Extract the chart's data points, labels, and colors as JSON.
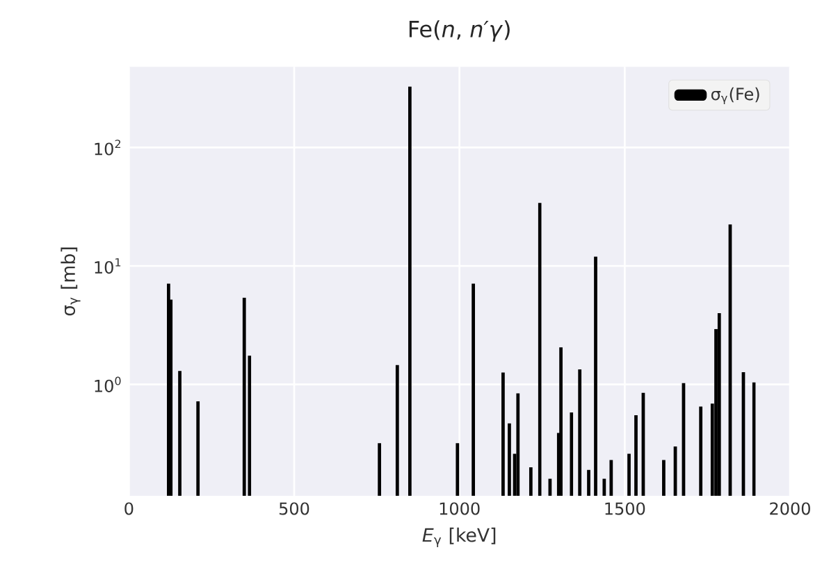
{
  "chart_data": {
    "type": "bar",
    "title": "Fe(*n*, *n′γ*)",
    "xlabel": "*E*$_{γ}$ [keV]",
    "ylabel": "σ$_{γ}$ [mb]",
    "series": [
      {
        "name": "σ$_{γ}$(Fe)",
        "color": "#000000",
        "x": [
          120,
          127,
          154,
          209,
          349,
          365,
          758,
          812,
          850,
          994,
          1042,
          1132,
          1151,
          1167,
          1177,
          1216,
          1243,
          1274,
          1300,
          1307,
          1339,
          1364,
          1391,
          1412,
          1438,
          1459,
          1513,
          1534,
          1556,
          1618,
          1653,
          1678,
          1730,
          1765,
          1776,
          1786,
          1819,
          1859,
          1891
        ],
        "values": [
          7.1,
          5.2,
          1.3,
          0.72,
          5.4,
          1.75,
          0.32,
          1.46,
          326,
          0.32,
          7.1,
          1.26,
          0.47,
          0.26,
          0.84,
          0.2,
          34,
          0.16,
          0.39,
          2.06,
          0.58,
          1.34,
          0.19,
          12,
          0.16,
          0.23,
          0.26,
          0.55,
          0.85,
          0.23,
          0.3,
          1.03,
          0.65,
          0.69,
          2.94,
          4.0,
          22.4,
          1.27,
          1.04
        ]
      }
    ],
    "xlim": [
      0,
      2000
    ],
    "xticks": [
      0,
      500,
      1000,
      1500,
      2000
    ],
    "ylim": [
      0.115,
      480
    ],
    "yticks": [
      {
        "value": 1,
        "label": "10$^{0}$"
      },
      {
        "value": 10,
        "label": "10$^{1}$"
      },
      {
        "value": 100,
        "label": "10$^{2}$"
      }
    ],
    "log": "y",
    "grid": true,
    "legend": "top right"
  }
}
